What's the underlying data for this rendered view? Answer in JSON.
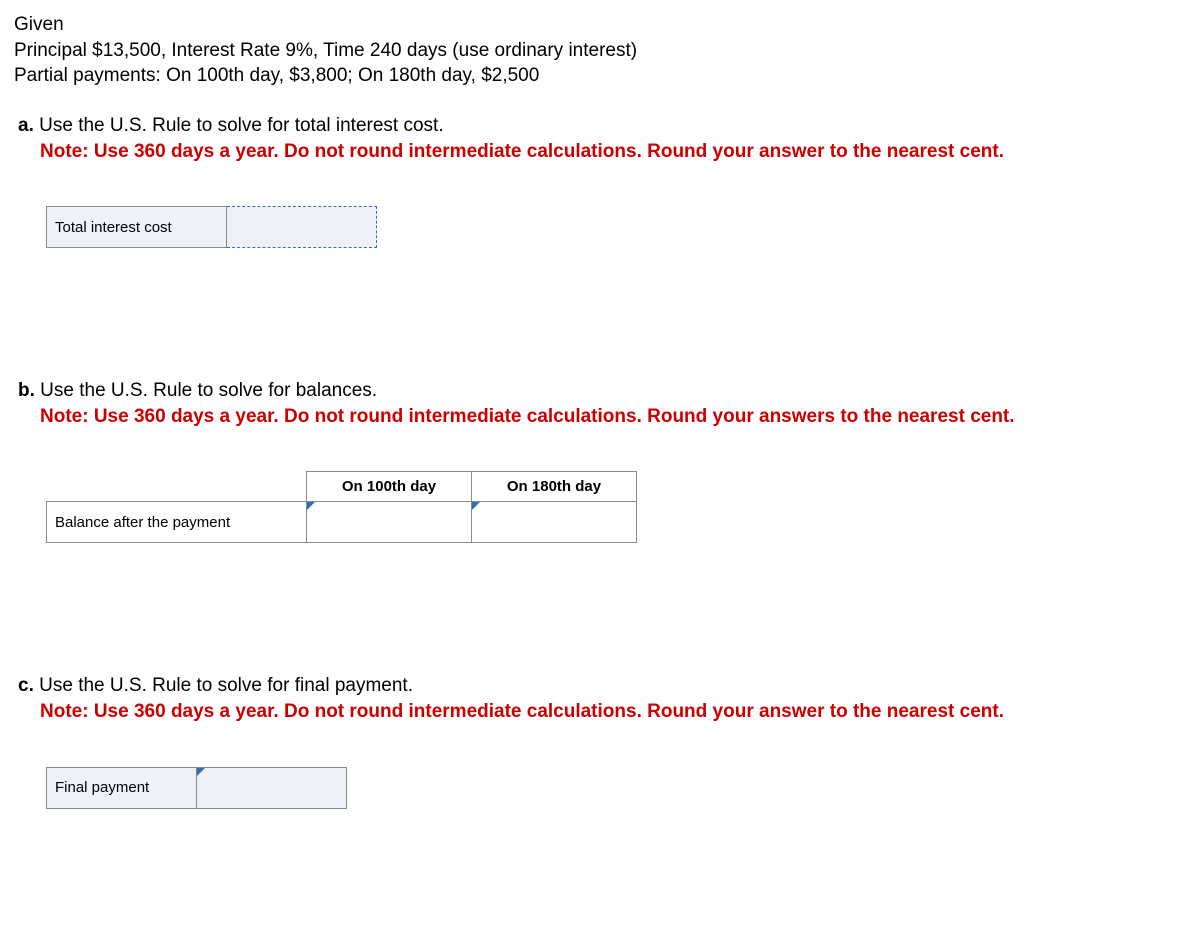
{
  "given": {
    "heading": "Given",
    "line1": "Principal $13,500, Interest Rate 9%, Time 240 days (use ordinary interest)",
    "line2": "Partial payments: On 100th day, $3,800; On 180th day, $2,500"
  },
  "part_a": {
    "letter": "a.",
    "prompt": " Use the U.S. Rule to solve for total interest cost.",
    "note": "Note: Use 360 days a year. Do not round intermediate calculations. Round your answer to the nearest cent.",
    "row_label": "Total interest cost",
    "input_value": ""
  },
  "part_b": {
    "letter": "b.",
    "prompt": " Use the U.S. Rule to solve for balances.",
    "note": "Note: Use 360 days a year. Do not round intermediate calculations. Round your answers to the nearest cent.",
    "col1": "On 100th day",
    "col2": "On 180th day",
    "row_label": "Balance after the payment",
    "input_100": "",
    "input_180": ""
  },
  "part_c": {
    "letter": "c.",
    "prompt": " Use the U.S. Rule to solve for final payment.",
    "note": "Note: Use 360 days a year. Do not round intermediate calculations. Round your answer to the nearest cent.",
    "row_label": "Final payment",
    "input_value": ""
  },
  "colors": {
    "note_color": "#cc0000",
    "cell_bg": "#eef2f8",
    "border": "#8a8a8a",
    "accent": "#2e6fb7"
  }
}
